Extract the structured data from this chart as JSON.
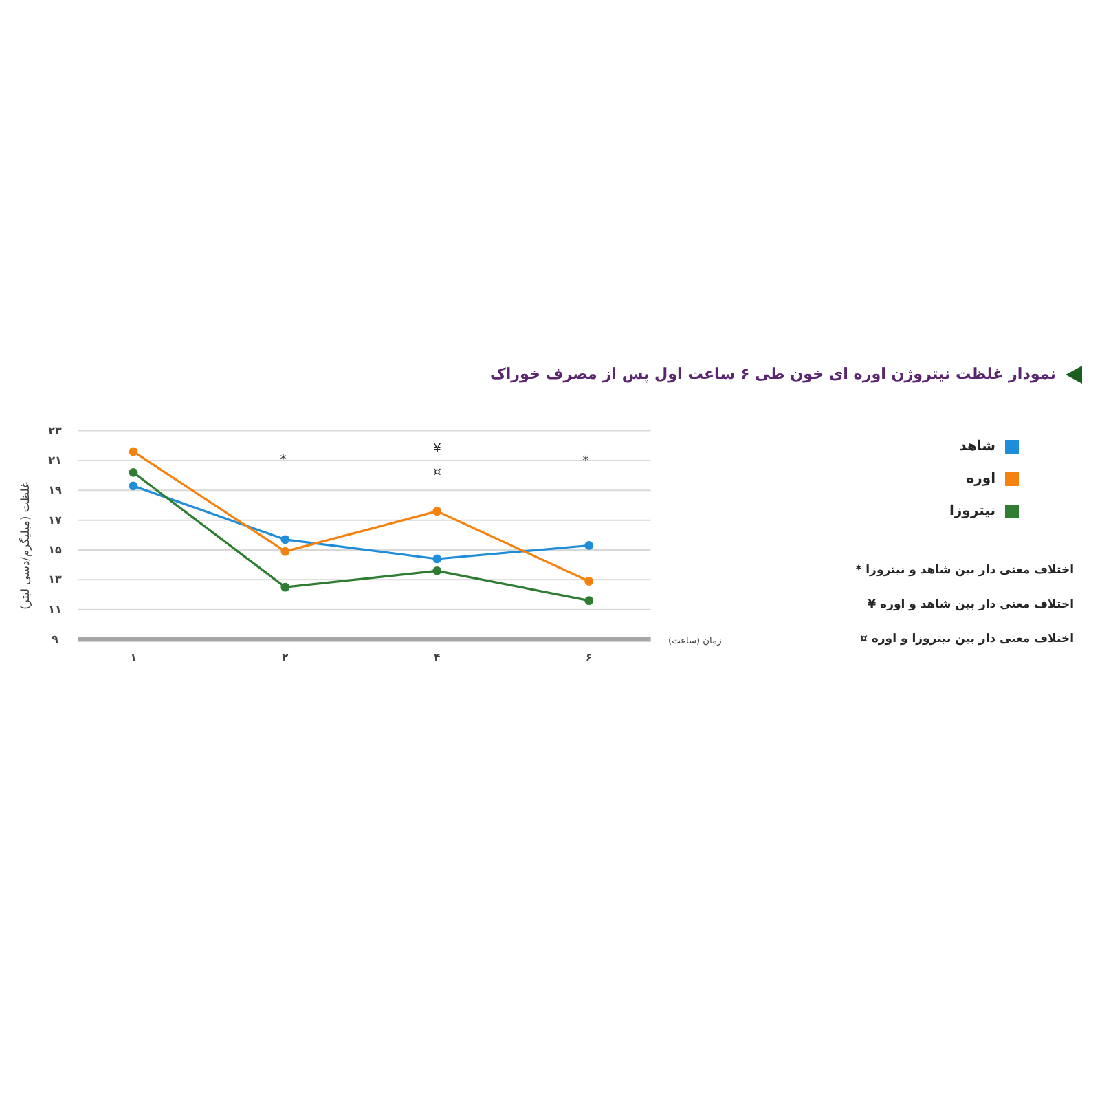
{
  "chart_data": {
    "type": "line",
    "title": "نمودار غلظت نیتروژن اوره ای خون طی ۶ ساعت اول پس از مصرف خوراک",
    "xlabel": "زمان (ساعت)",
    "ylabel": "غلظت (میلیگرم/دسی لیتر)",
    "categories": [
      "۱",
      "۲",
      "۴",
      "۶"
    ],
    "series": [
      {
        "name": "شاهد",
        "color": "#1f8dd8",
        "values": [
          19.3,
          15.7,
          14.4,
          15.3
        ]
      },
      {
        "name": "اوره",
        "color": "#f5820f",
        "values": [
          21.6,
          14.9,
          17.6,
          12.9
        ]
      },
      {
        "name": "نیتروزا",
        "color": "#2e7d32",
        "values": [
          20.2,
          12.5,
          13.6,
          11.6
        ]
      }
    ],
    "ylim": [
      9,
      23
    ],
    "yticks": [
      {
        "value": 9,
        "label": "۹"
      },
      {
        "value": 11,
        "label": "۱۱"
      },
      {
        "value": 13,
        "label": "۱۳"
      },
      {
        "value": 15,
        "label": "۱۵"
      },
      {
        "value": 17,
        "label": "۱۷"
      },
      {
        "value": 19,
        "label": "۱۹"
      },
      {
        "value": 21,
        "label": "۲۱"
      },
      {
        "value": 23,
        "label": "۲۳"
      }
    ],
    "grid": "y",
    "legend": "right",
    "marker": "circle",
    "line_style": "solid",
    "annotations": [
      "*",
      "¥",
      "¤",
      "*",
      "اختلاف معنی دار بین شاهد و نیتروزا *",
      "اختلاف معنی دار بین شاهد و اوره ¥",
      "اختلاف معنی دار بین نیتروزا و اوره ¤"
    ]
  }
}
